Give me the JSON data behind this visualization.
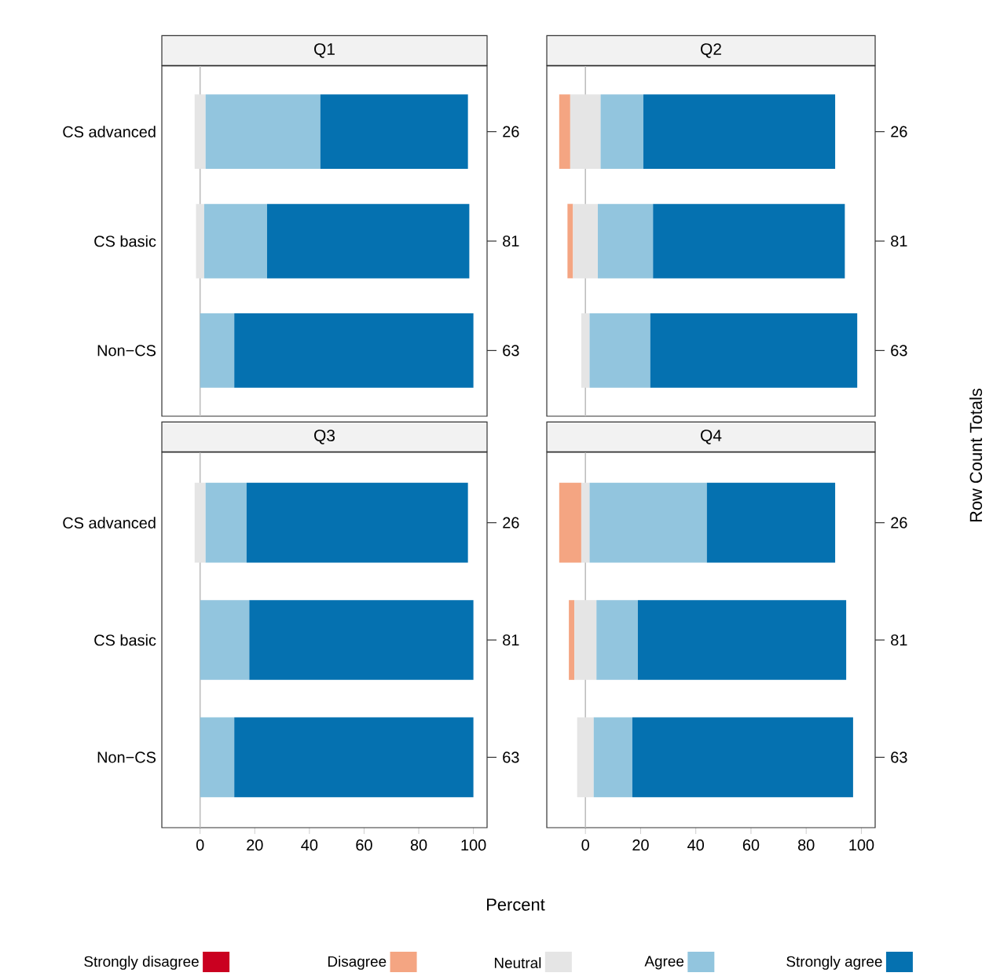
{
  "chart_data": [
    {
      "type": "bar",
      "orientation": "horizontal",
      "title": "Q1",
      "categories": [
        "CS advanced",
        "CS basic",
        "Non−CS"
      ],
      "xlim": [
        -14,
        105
      ],
      "xticks": [
        0,
        20,
        40,
        60,
        80,
        100
      ],
      "tick_labels": "y",
      "annotations": [
        "26",
        "81",
        "63"
      ],
      "ref_lines": [
        {
          "axis": "x",
          "value": 0,
          "color": "#bebebe"
        }
      ],
      "series": [
        {
          "color": "#e5e5e5",
          "base": [
            -2,
            -1.5,
            null
          ],
          "values": [
            4,
            3,
            null
          ]
        },
        {
          "color": "#92c5de",
          "base": [
            2,
            1.5,
            0
          ],
          "values": [
            42,
            23,
            12.5
          ]
        },
        {
          "color": "#0571b0",
          "base": [
            44,
            24.5,
            12.5
          ],
          "values": [
            54,
            74,
            87.5
          ]
        }
      ]
    },
    {
      "type": "bar",
      "orientation": "horizontal",
      "title": "Q2",
      "categories": [
        null,
        null,
        null
      ],
      "xlim": [
        -14,
        105
      ],
      "xticks": [
        0,
        20,
        40,
        60,
        80,
        100
      ],
      "tick_labels": false,
      "annotations": [
        "26",
        "81",
        "63"
      ],
      "y2label": "Row Count Totals",
      "ref_lines": [
        {
          "axis": "x",
          "value": 0,
          "color": "#bebebe"
        }
      ],
      "series": [
        {
          "color": "#f4a582",
          "base": [
            -9.5,
            -6.5,
            null
          ],
          "values": [
            4,
            2,
            null
          ]
        },
        {
          "color": "#e5e5e5",
          "base": [
            -5.5,
            -4.5,
            -1.5
          ],
          "values": [
            11,
            9,
            3
          ]
        },
        {
          "color": "#92c5de",
          "base": [
            5.5,
            4.5,
            1.5
          ],
          "values": [
            15.5,
            20,
            22
          ]
        },
        {
          "color": "#0571b0",
          "base": [
            21,
            24.5,
            23.5
          ],
          "values": [
            69.5,
            69.5,
            75
          ]
        }
      ]
    },
    {
      "type": "bar",
      "orientation": "horizontal",
      "title": "Q3",
      "categories": [
        "CS advanced",
        "CS basic",
        "Non−CS"
      ],
      "xlim": [
        -14,
        105
      ],
      "xticks": [
        0,
        20,
        40,
        60,
        80,
        100
      ],
      "annotations": [
        "26",
        "81",
        "63"
      ],
      "xlabel": "Percent",
      "ref_lines": [
        {
          "axis": "x",
          "value": 0,
          "color": "#bebebe"
        }
      ],
      "series": [
        {
          "color": "#e5e5e5",
          "base": [
            -2,
            null,
            null
          ],
          "values": [
            4,
            null,
            null
          ]
        },
        {
          "color": "#92c5de",
          "base": [
            2,
            0,
            0
          ],
          "values": [
            15,
            18,
            12.5
          ]
        },
        {
          "color": "#0571b0",
          "base": [
            17,
            18,
            12.5
          ],
          "values": [
            81,
            82,
            87.5
          ]
        }
      ]
    },
    {
      "type": "bar",
      "orientation": "horizontal",
      "title": "Q4",
      "categories": [
        null,
        null,
        null
      ],
      "xlim": [
        -14,
        105
      ],
      "xticks": [
        0,
        20,
        40,
        60,
        80,
        100
      ],
      "tick_labels": "x",
      "annotations": [
        "26",
        "81",
        "63"
      ],
      "legend": "bottom",
      "ref_lines": [
        {
          "axis": "x",
          "value": 0,
          "color": "#bebebe"
        }
      ],
      "series": [
        {
          "name": "Strongly disagree",
          "color": "#ca0020",
          "base": [
            null,
            null,
            null
          ],
          "values": [
            null,
            null,
            null
          ]
        },
        {
          "name": "Disagree",
          "color": "#f4a582",
          "base": [
            -9.5,
            -6,
            null
          ],
          "values": [
            8,
            2,
            null
          ]
        },
        {
          "name": "Neutral",
          "color": "#e5e5e5",
          "base": [
            -1.5,
            -4,
            -3
          ],
          "values": [
            3,
            8,
            6
          ]
        },
        {
          "name": "Agree",
          "color": "#92c5de",
          "base": [
            1.5,
            4,
            3
          ],
          "values": [
            42.5,
            15,
            14
          ]
        },
        {
          "name": "Strongly agree",
          "color": "#0571b0",
          "base": [
            44,
            19,
            17
          ],
          "values": [
            46.5,
            75.5,
            80
          ]
        }
      ]
    }
  ]
}
